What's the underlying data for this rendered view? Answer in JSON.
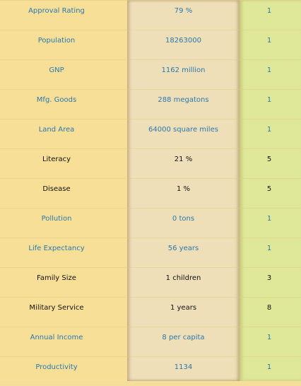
{
  "colors": {
    "good_text": "#2a78ad",
    "bad_text": "#111111"
  },
  "rows": [
    {
      "name": "Approval Rating",
      "value": "79 %",
      "rank": "1",
      "status": "good"
    },
    {
      "name": "Population",
      "value": "18263000",
      "rank": "1",
      "status": "good"
    },
    {
      "name": "GNP",
      "value": "1162 million",
      "rank": "1",
      "status": "good"
    },
    {
      "name": "Mfg. Goods",
      "value": "288 megatons",
      "rank": "1",
      "status": "good"
    },
    {
      "name": "Land Area",
      "value": "64000 square miles",
      "rank": "1",
      "status": "good"
    },
    {
      "name": "Literacy",
      "value": "21 %",
      "rank": "5",
      "status": "bad"
    },
    {
      "name": "Disease",
      "value": "1 %",
      "rank": "5",
      "status": "bad"
    },
    {
      "name": "Pollution",
      "value": "0 tons",
      "rank": "1",
      "status": "good"
    },
    {
      "name": "Life Expectancy",
      "value": "56 years",
      "rank": "1",
      "status": "good"
    },
    {
      "name": "Family Size",
      "value": "1 children",
      "rank": "3",
      "status": "bad"
    },
    {
      "name": "Military Service",
      "value": "1 years",
      "rank": "8",
      "status": "bad"
    },
    {
      "name": "Annual Income",
      "value": "8 per capita",
      "rank": "1",
      "status": "good"
    },
    {
      "name": "Productivity",
      "value": "1134",
      "rank": "1",
      "status": "good"
    }
  ]
}
